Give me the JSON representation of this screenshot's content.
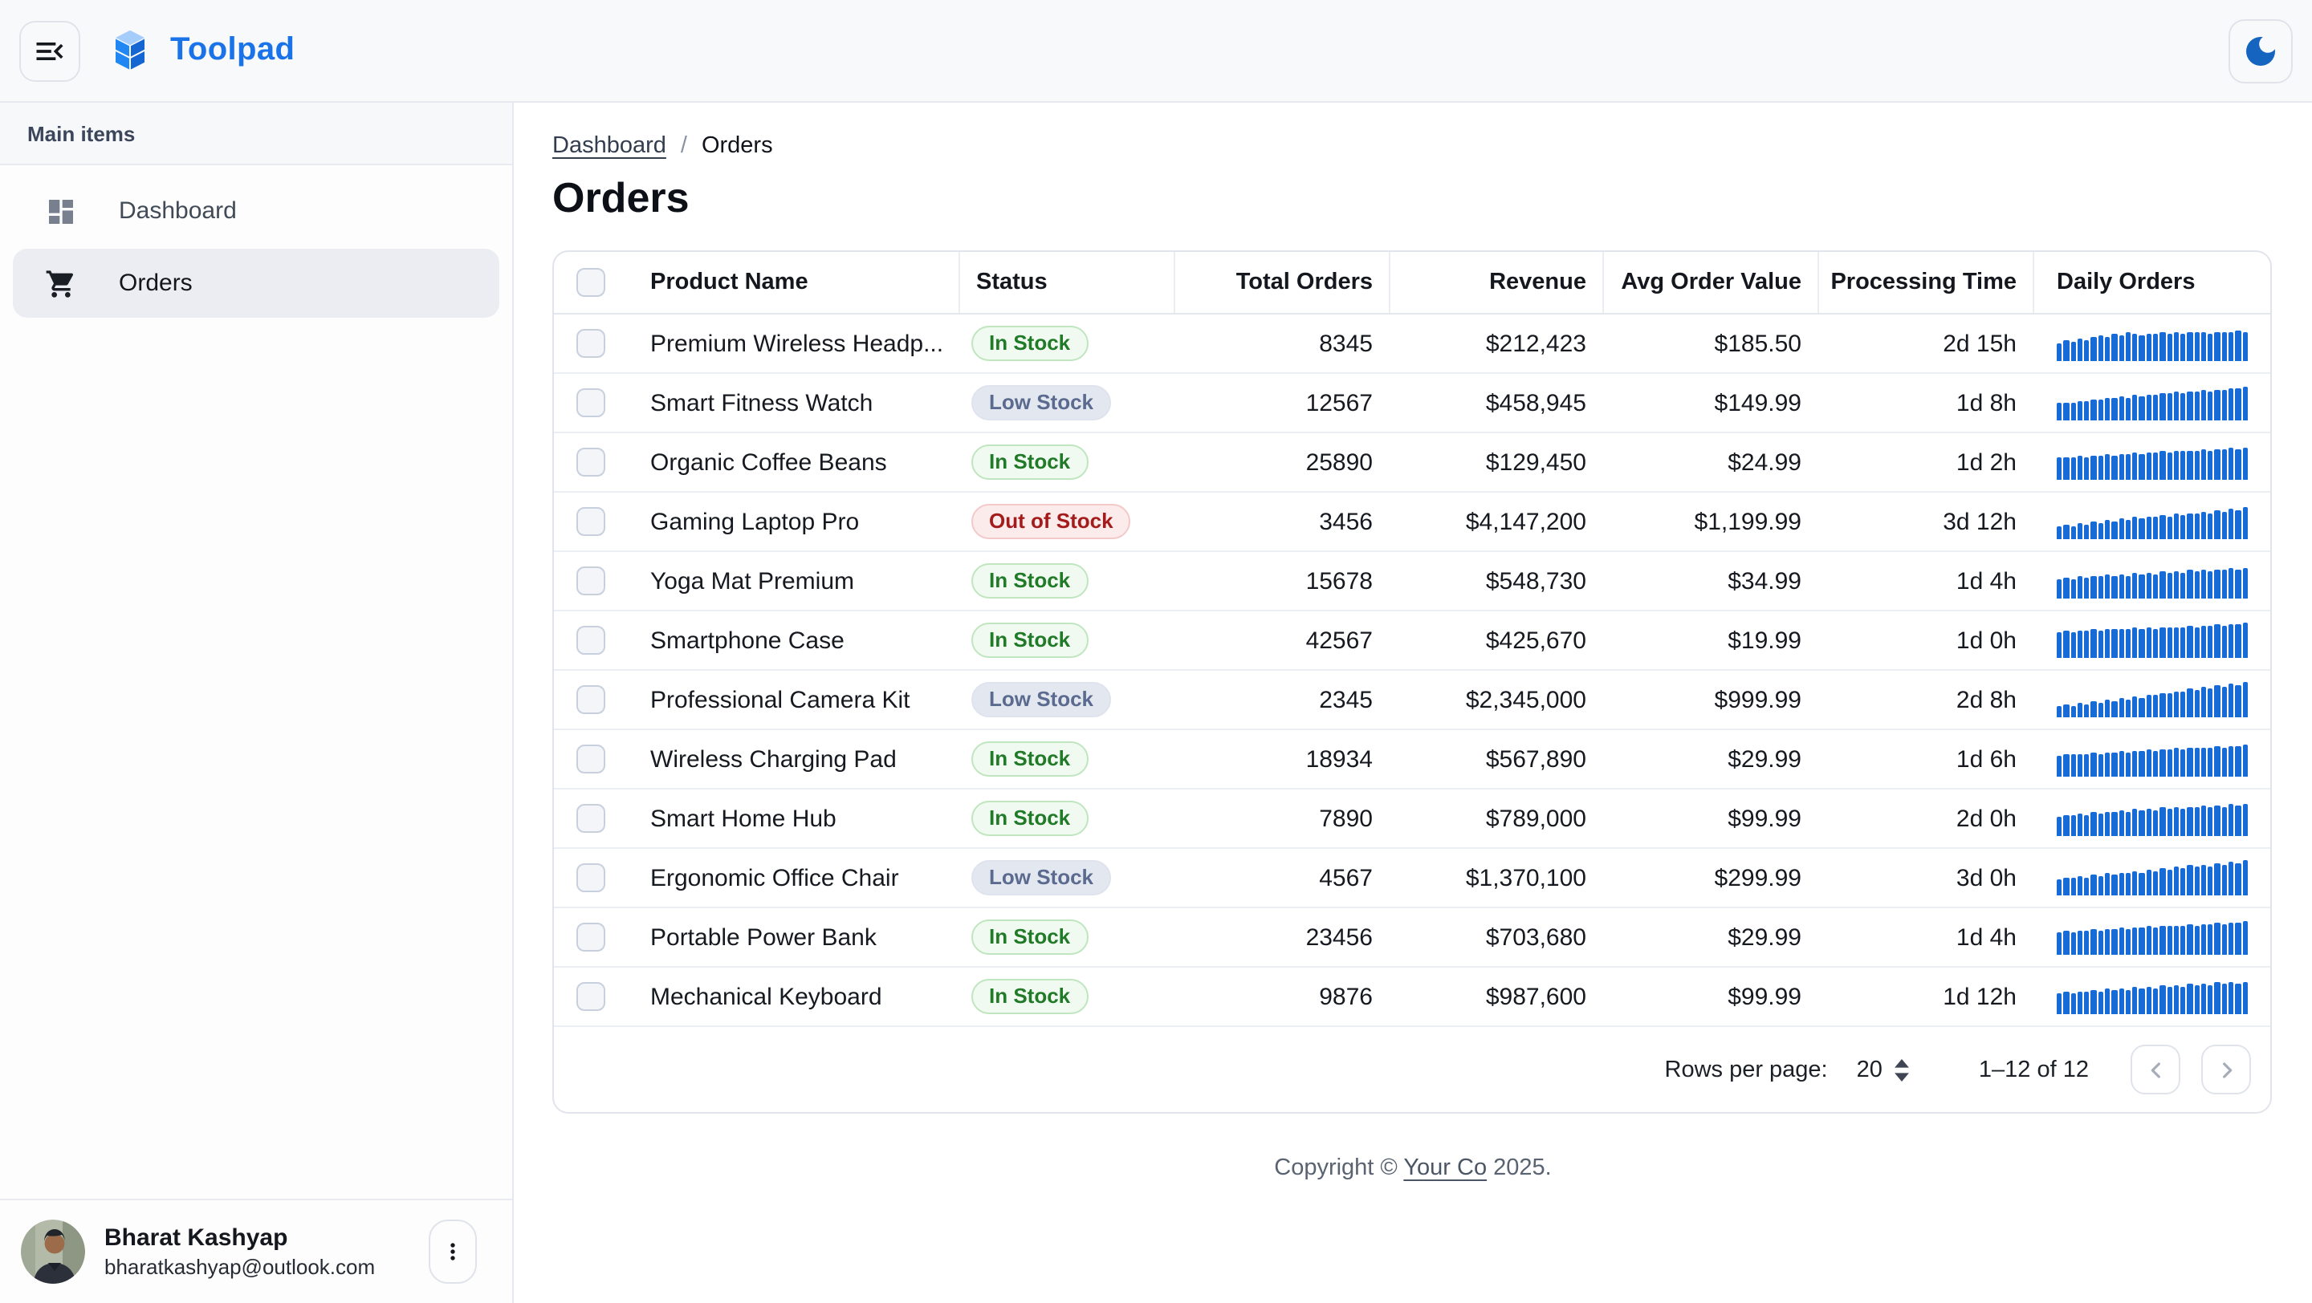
{
  "app": {
    "title": "Toolpad"
  },
  "icons": {
    "collapse": "menu-open-icon",
    "brand": "toolpad-logo-icon",
    "theme": "moon-icon",
    "dashboard": "dashboard-icon",
    "orders": "shopping-cart-icon",
    "user_menu": "kebab-menu-icon",
    "page_prev": "chevron-left-icon",
    "page_next": "chevron-right-icon"
  },
  "sidebar": {
    "section_label": "Main items",
    "items": [
      {
        "label": "Dashboard",
        "icon": "dashboard-icon",
        "selected": false
      },
      {
        "label": "Orders",
        "icon": "shopping-cart-icon",
        "selected": true
      }
    ],
    "user": {
      "name": "Bharat Kashyap",
      "email": "bharatkashyap@outlook.com"
    }
  },
  "breadcrumb": {
    "items": [
      "Dashboard",
      "Orders"
    ],
    "separator": "/"
  },
  "page": {
    "title": "Orders"
  },
  "table": {
    "columns": [
      "Product Name",
      "Status",
      "Total Orders",
      "Revenue",
      "Avg Order Value",
      "Processing Time",
      "Daily Orders"
    ],
    "rows": [
      {
        "product": "Premium Wireless Headp...",
        "status": "In Stock",
        "status_variant": "success",
        "total_orders": "8345",
        "revenue": "$212,423",
        "avg_order_value": "$185.50",
        "processing_time": "2d 15h",
        "spark": [
          52,
          60,
          55,
          63,
          58,
          70,
          75,
          68,
          78,
          72,
          80,
          76,
          74,
          78,
          76,
          80,
          78,
          83,
          79,
          84,
          80,
          82,
          78,
          81,
          84,
          80,
          86,
          82
        ]
      },
      {
        "product": "Smart Fitness Watch",
        "status": "Low Stock",
        "status_variant": "neutral",
        "total_orders": "12567",
        "revenue": "$458,945",
        "avg_order_value": "$149.99",
        "processing_time": "1d 8h",
        "spark": [
          48,
          52,
          50,
          56,
          54,
          60,
          58,
          64,
          62,
          68,
          66,
          72,
          70,
          75,
          73,
          78,
          76,
          81,
          79,
          84,
          82,
          86,
          84,
          88,
          86,
          90,
          92,
          95
        ]
      },
      {
        "product": "Organic Coffee Beans",
        "status": "In Stock",
        "status_variant": "success",
        "total_orders": "25890",
        "revenue": "$129,450",
        "avg_order_value": "$24.99",
        "processing_time": "1d 2h",
        "spark": [
          62,
          66,
          64,
          68,
          66,
          70,
          68,
          72,
          70,
          74,
          72,
          76,
          74,
          78,
          76,
          80,
          78,
          82,
          80,
          84,
          82,
          86,
          84,
          88,
          86,
          90,
          88,
          92
        ]
      },
      {
        "product": "Gaming Laptop Pro",
        "status": "Out of Stock",
        "status_variant": "error",
        "total_orders": "3456",
        "revenue": "$4,147,200",
        "avg_order_value": "$1,199.99",
        "processing_time": "3d 12h",
        "spark": [
          35,
          40,
          38,
          45,
          42,
          50,
          47,
          55,
          52,
          58,
          55,
          62,
          58,
          65,
          62,
          68,
          65,
          72,
          68,
          75,
          72,
          78,
          75,
          82,
          78,
          85,
          82,
          90
        ]
      },
      {
        "product": "Yoga Mat Premium",
        "status": "In Stock",
        "status_variant": "success",
        "total_orders": "15678",
        "revenue": "$548,730",
        "avg_order_value": "$34.99",
        "processing_time": "1d 4h",
        "spark": [
          55,
          60,
          57,
          63,
          60,
          66,
          62,
          68,
          64,
          70,
          66,
          72,
          68,
          74,
          70,
          76,
          72,
          78,
          74,
          80,
          76,
          82,
          78,
          84,
          80,
          86,
          82,
          88
        ]
      },
      {
        "product": "Smartphone Case",
        "status": "In Stock",
        "status_variant": "success",
        "total_orders": "42567",
        "revenue": "$425,670",
        "avg_order_value": "$19.99",
        "processing_time": "1d 0h",
        "spark": [
          72,
          76,
          74,
          78,
          76,
          80,
          78,
          82,
          80,
          84,
          82,
          86,
          84,
          88,
          84,
          86,
          85,
          88,
          86,
          90,
          88,
          92,
          90,
          94,
          92,
          96,
          94,
          98
        ]
      },
      {
        "product": "Professional Camera Kit",
        "status": "Low Stock",
        "status_variant": "neutral",
        "total_orders": "2345",
        "revenue": "$2,345,000",
        "avg_order_value": "$999.99",
        "processing_time": "2d 8h",
        "spark": [
          30,
          36,
          33,
          40,
          37,
          45,
          42,
          50,
          47,
          55,
          52,
          60,
          57,
          65,
          62,
          70,
          67,
          75,
          72,
          80,
          77,
          85,
          82,
          90,
          87,
          94,
          91,
          100
        ]
      },
      {
        "product": "Wireless Charging Pad",
        "status": "In Stock",
        "status_variant": "success",
        "total_orders": "18934",
        "revenue": "$567,890",
        "avg_order_value": "$29.99",
        "processing_time": "1d 6h",
        "spark": [
          60,
          64,
          62,
          66,
          64,
          68,
          66,
          70,
          68,
          72,
          70,
          74,
          72,
          76,
          74,
          78,
          76,
          80,
          78,
          82,
          80,
          84,
          82,
          86,
          84,
          88,
          86,
          90
        ]
      },
      {
        "product": "Smart Home Hub",
        "status": "In Stock",
        "status_variant": "success",
        "total_orders": "7890",
        "revenue": "$789,000",
        "avg_order_value": "$99.99",
        "processing_time": "2d 0h",
        "spark": [
          55,
          60,
          58,
          64,
          61,
          67,
          64,
          70,
          67,
          73,
          70,
          76,
          72,
          78,
          74,
          80,
          76,
          82,
          78,
          84,
          80,
          86,
          82,
          88,
          84,
          90,
          86,
          92
        ]
      },
      {
        "product": "Ergonomic Office Chair",
        "status": "Low Stock",
        "status_variant": "neutral",
        "total_orders": "4567",
        "revenue": "$1,370,100",
        "avg_order_value": "$299.99",
        "processing_time": "3d 0h",
        "spark": [
          45,
          50,
          48,
          54,
          51,
          58,
          55,
          62,
          59,
          66,
          62,
          70,
          66,
          74,
          70,
          78,
          74,
          82,
          78,
          86,
          80,
          88,
          84,
          90,
          86,
          94,
          90,
          98
        ]
      },
      {
        "product": "Portable Power Bank",
        "status": "In Stock",
        "status_variant": "success",
        "total_orders": "23456",
        "revenue": "$703,680",
        "avg_order_value": "$29.99",
        "processing_time": "1d 4h",
        "spark": [
          65,
          68,
          66,
          70,
          68,
          72,
          70,
          74,
          72,
          76,
          74,
          78,
          76,
          80,
          78,
          82,
          80,
          84,
          82,
          86,
          84,
          88,
          86,
          90,
          88,
          92,
          90,
          94
        ]
      },
      {
        "product": "Mechanical Keyboard",
        "status": "In Stock",
        "status_variant": "success",
        "total_orders": "9876",
        "revenue": "$987,600",
        "avg_order_value": "$99.99",
        "processing_time": "1d 12h",
        "spark": [
          58,
          62,
          60,
          65,
          62,
          68,
          65,
          71,
          68,
          74,
          70,
          76,
          73,
          79,
          75,
          81,
          77,
          83,
          79,
          85,
          81,
          87,
          83,
          89,
          85,
          91,
          87,
          93
        ]
      }
    ],
    "pagination": {
      "rows_per_page_label": "Rows per page:",
      "rows_per_page": "20",
      "range": "1–12 of 12"
    }
  },
  "footer": {
    "prefix": "Copyright © ",
    "link_text": "Your Co",
    "suffix": " 2025."
  },
  "colors": {
    "brand_blue": "#1a73e8",
    "spark_bar": "#176bd6",
    "moon": "#1565c0",
    "chip_success_text": "#217a28",
    "chip_neutral_text": "#5a6b8f",
    "chip_error_text": "#a31b1b",
    "topbar_bg": "#f8f9fb",
    "border": "#e5e8ee"
  }
}
